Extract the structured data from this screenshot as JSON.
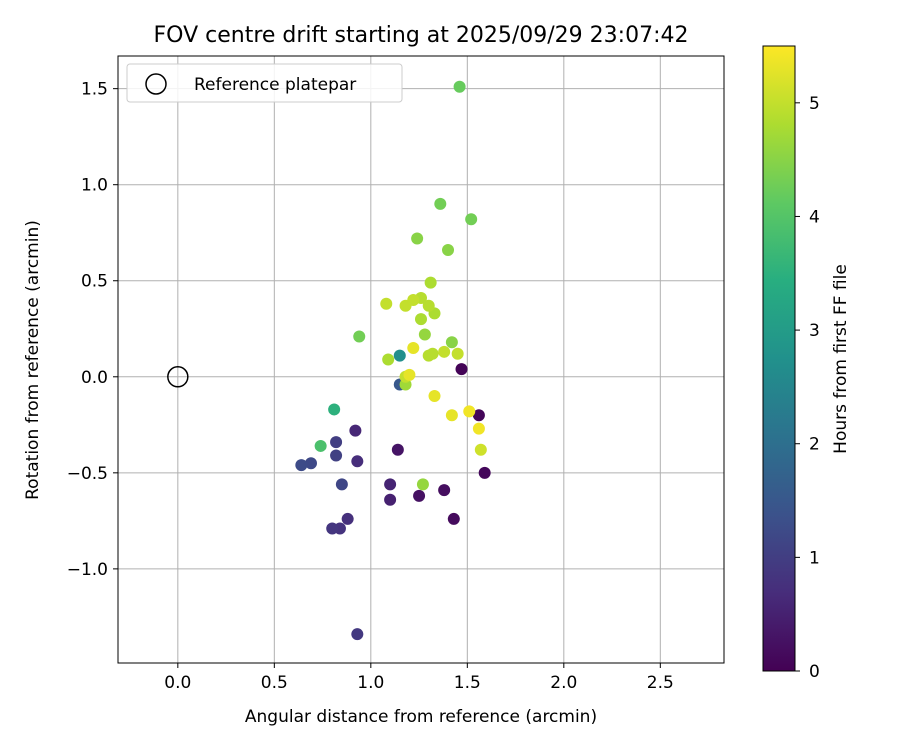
{
  "chart_data": {
    "type": "scatter",
    "title": "FOV centre drift starting at 2025/09/29 23:07:42",
    "xlabel": "Angular distance from reference (arcmin)",
    "ylabel": "Rotation from reference (arcmin)",
    "xlim": [
      -0.31,
      2.83
    ],
    "ylim": [
      -1.49,
      1.67
    ],
    "xticks": [
      0.0,
      0.5,
      1.0,
      1.5,
      2.0,
      2.5
    ],
    "xtick_labels": [
      "0.0",
      "0.5",
      "1.0",
      "1.5",
      "2.0",
      "2.5"
    ],
    "yticks": [
      -1.0,
      -0.5,
      0.0,
      0.5,
      1.0,
      1.5
    ],
    "ytick_labels": [
      "−1.0",
      "−0.5",
      "0.0",
      "0.5",
      "1.0",
      "1.5"
    ],
    "grid": true,
    "legend": {
      "placement": "upper-left",
      "entries": [
        "Reference platepar"
      ]
    },
    "reference_point": {
      "x": 0.0,
      "y": 0.0
    },
    "colorbar": {
      "label": "Hours from first FF file",
      "range": [
        0,
        5.5
      ],
      "ticks": [
        0,
        1,
        2,
        3,
        4,
        5
      ],
      "tick_labels": [
        "0",
        "1",
        "2",
        "3",
        "4",
        "5"
      ],
      "colormap": "viridis"
    },
    "points": [
      {
        "x": 1.47,
        "y": 0.04,
        "t": 0.05
      },
      {
        "x": 1.56,
        "y": -0.2,
        "t": 0.08
      },
      {
        "x": 1.59,
        "y": -0.5,
        "t": 0.1
      },
      {
        "x": 1.43,
        "y": -0.74,
        "t": 0.15
      },
      {
        "x": 1.38,
        "y": -0.59,
        "t": 0.2
      },
      {
        "x": 1.25,
        "y": -0.62,
        "t": 0.25
      },
      {
        "x": 1.14,
        "y": -0.38,
        "t": 0.3
      },
      {
        "x": 1.1,
        "y": -0.64,
        "t": 0.5
      },
      {
        "x": 1.1,
        "y": -0.56,
        "t": 0.55
      },
      {
        "x": 0.92,
        "y": -0.28,
        "t": 0.6
      },
      {
        "x": 0.93,
        "y": -0.44,
        "t": 0.7
      },
      {
        "x": 0.88,
        "y": -0.74,
        "t": 0.75
      },
      {
        "x": 0.84,
        "y": -0.79,
        "t": 0.8
      },
      {
        "x": 0.8,
        "y": -0.79,
        "t": 0.85
      },
      {
        "x": 0.93,
        "y": -1.34,
        "t": 0.9
      },
      {
        "x": 0.82,
        "y": -0.34,
        "t": 1.0
      },
      {
        "x": 0.82,
        "y": -0.41,
        "t": 1.05
      },
      {
        "x": 0.85,
        "y": -0.56,
        "t": 1.15
      },
      {
        "x": 0.69,
        "y": -0.45,
        "t": 1.2
      },
      {
        "x": 0.64,
        "y": -0.46,
        "t": 1.25
      },
      {
        "x": 1.15,
        "y": -0.04,
        "t": 1.5
      },
      {
        "x": 1.15,
        "y": 0.11,
        "t": 2.7
      },
      {
        "x": 0.81,
        "y": -0.17,
        "t": 3.5
      },
      {
        "x": 0.74,
        "y": -0.36,
        "t": 3.9
      },
      {
        "x": 1.46,
        "y": 1.51,
        "t": 4.2
      },
      {
        "x": 1.36,
        "y": 0.9,
        "t": 4.3
      },
      {
        "x": 1.52,
        "y": 0.82,
        "t": 4.3
      },
      {
        "x": 0.94,
        "y": 0.21,
        "t": 4.3
      },
      {
        "x": 1.24,
        "y": 0.72,
        "t": 4.5
      },
      {
        "x": 1.4,
        "y": 0.66,
        "t": 4.5
      },
      {
        "x": 1.42,
        "y": 0.18,
        "t": 4.5
      },
      {
        "x": 1.28,
        "y": 0.22,
        "t": 4.6
      },
      {
        "x": 1.27,
        "y": -0.56,
        "t": 4.6
      },
      {
        "x": 1.18,
        "y": -0.04,
        "t": 4.7
      },
      {
        "x": 1.31,
        "y": 0.49,
        "t": 4.8
      },
      {
        "x": 1.33,
        "y": 0.33,
        "t": 4.8
      },
      {
        "x": 1.26,
        "y": 0.3,
        "t": 4.8
      },
      {
        "x": 1.09,
        "y": 0.09,
        "t": 4.8
      },
      {
        "x": 1.26,
        "y": 0.41,
        "t": 4.9
      },
      {
        "x": 1.3,
        "y": 0.37,
        "t": 4.9
      },
      {
        "x": 1.3,
        "y": 0.11,
        "t": 4.9
      },
      {
        "x": 1.32,
        "y": 0.12,
        "t": 4.9
      },
      {
        "x": 1.08,
        "y": 0.38,
        "t": 5.0
      },
      {
        "x": 1.18,
        "y": 0.37,
        "t": 5.0
      },
      {
        "x": 1.22,
        "y": 0.4,
        "t": 5.0
      },
      {
        "x": 1.38,
        "y": 0.13,
        "t": 5.0
      },
      {
        "x": 1.45,
        "y": 0.12,
        "t": 5.0
      },
      {
        "x": 1.18,
        "y": 0.0,
        "t": 5.0
      },
      {
        "x": 1.57,
        "y": -0.38,
        "t": 5.1
      },
      {
        "x": 1.22,
        "y": 0.15,
        "t": 5.3
      },
      {
        "x": 1.2,
        "y": 0.01,
        "t": 5.3
      },
      {
        "x": 1.33,
        "y": -0.1,
        "t": 5.3
      },
      {
        "x": 1.42,
        "y": -0.2,
        "t": 5.3
      },
      {
        "x": 1.51,
        "y": -0.18,
        "t": 5.4
      },
      {
        "x": 1.56,
        "y": -0.27,
        "t": 5.4
      }
    ]
  }
}
